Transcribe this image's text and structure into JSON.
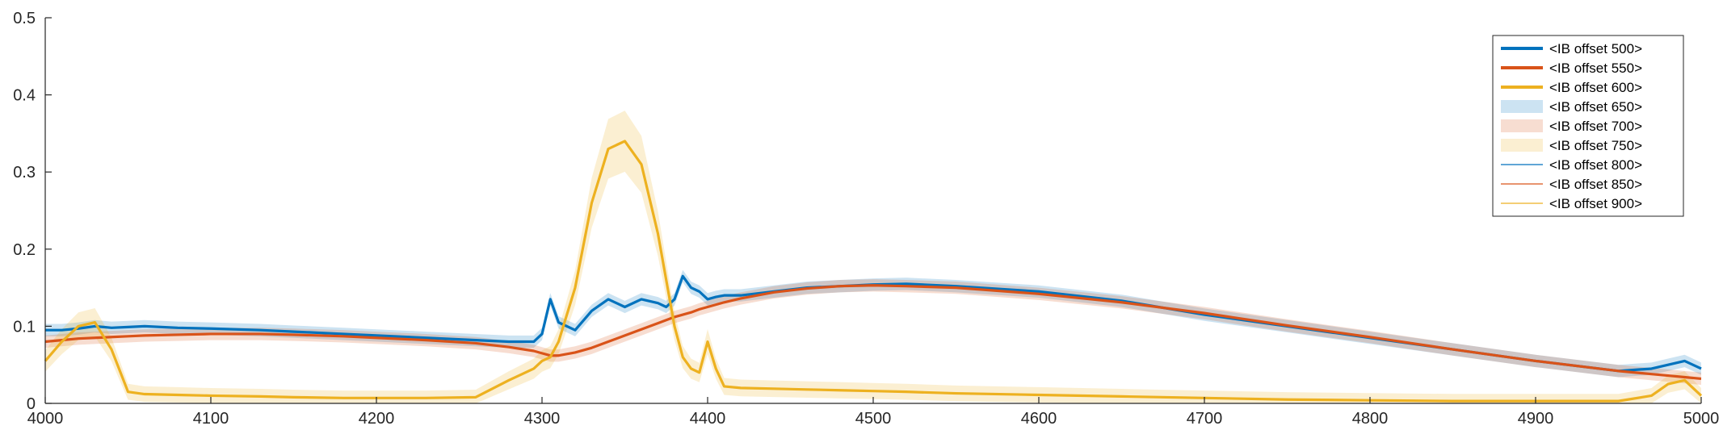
{
  "chart_data": {
    "type": "line",
    "title": "",
    "xlabel": "",
    "ylabel": "",
    "xlim": [
      4000,
      5000
    ],
    "ylim": [
      0,
      0.5
    ],
    "x_ticks": [
      4000,
      4100,
      4200,
      4300,
      4400,
      4500,
      4600,
      4700,
      4800,
      4900,
      5000
    ],
    "x_tick_labels": [
      "4000",
      "4100",
      "4200",
      "4300",
      "4400",
      "4500",
      "4600",
      "4700",
      "4800",
      "4900",
      "5000"
    ],
    "y_ticks": [
      0,
      0.1,
      0.2,
      0.3,
      0.4,
      0.5
    ],
    "y_tick_labels": [
      "0",
      "0.1",
      "0.2",
      "0.3",
      "0.4",
      "0.5"
    ],
    "grid": false,
    "legend_position": "top-right",
    "x": [
      4000,
      4010,
      4020,
      4030,
      4040,
      4050,
      4060,
      4080,
      4100,
      4130,
      4150,
      4180,
      4200,
      4230,
      4260,
      4280,
      4295,
      4300,
      4305,
      4310,
      4320,
      4330,
      4340,
      4350,
      4360,
      4370,
      4375,
      4380,
      4385,
      4390,
      4395,
      4400,
      4405,
      4410,
      4420,
      4440,
      4460,
      4480,
      4500,
      4520,
      4550,
      4600,
      4650,
      4700,
      4750,
      4800,
      4850,
      4900,
      4950,
      4970,
      4980,
      4990,
      5000
    ],
    "series": [
      {
        "name": "<IB offset 500>",
        "color": "#0072BD",
        "values": [
          0.095,
          0.095,
          0.097,
          0.1,
          0.098,
          0.099,
          0.1,
          0.098,
          0.097,
          0.095,
          0.093,
          0.09,
          0.088,
          0.085,
          0.082,
          0.08,
          0.08,
          0.09,
          0.135,
          0.105,
          0.095,
          0.12,
          0.135,
          0.125,
          0.135,
          0.13,
          0.125,
          0.135,
          0.165,
          0.15,
          0.145,
          0.135,
          0.138,
          0.14,
          0.14,
          0.145,
          0.15,
          0.152,
          0.154,
          0.155,
          0.152,
          0.145,
          0.133,
          0.115,
          0.1,
          0.085,
          0.07,
          0.055,
          0.042,
          0.045,
          0.05,
          0.055,
          0.045
        ]
      },
      {
        "name": "<IB offset 550>",
        "color": "#D95319",
        "values": [
          0.08,
          0.082,
          0.084,
          0.085,
          0.086,
          0.087,
          0.088,
          0.089,
          0.09,
          0.09,
          0.089,
          0.087,
          0.085,
          0.082,
          0.078,
          0.073,
          0.068,
          0.065,
          0.062,
          0.062,
          0.066,
          0.072,
          0.08,
          0.088,
          0.096,
          0.104,
          0.108,
          0.112,
          0.115,
          0.118,
          0.122,
          0.125,
          0.128,
          0.131,
          0.136,
          0.144,
          0.149,
          0.152,
          0.153,
          0.152,
          0.15,
          0.142,
          0.131,
          0.117,
          0.101,
          0.086,
          0.07,
          0.055,
          0.042,
          0.038,
          0.036,
          0.034,
          0.032
        ]
      },
      {
        "name": "<IB offset 600>",
        "color": "#EDB120",
        "values": [
          0.055,
          0.08,
          0.1,
          0.105,
          0.07,
          0.015,
          0.012,
          0.011,
          0.01,
          0.009,
          0.008,
          0.007,
          0.007,
          0.007,
          0.008,
          0.03,
          0.045,
          0.055,
          0.06,
          0.08,
          0.15,
          0.26,
          0.33,
          0.34,
          0.31,
          0.22,
          0.16,
          0.1,
          0.06,
          0.045,
          0.04,
          0.08,
          0.045,
          0.022,
          0.02,
          0.019,
          0.018,
          0.017,
          0.016,
          0.015,
          0.013,
          0.011,
          0.009,
          0.007,
          0.005,
          0.004,
          0.003,
          0.003,
          0.003,
          0.01,
          0.025,
          0.03,
          0.01
        ]
      }
    ],
    "band_entries": [
      {
        "name": "<IB offset 650>",
        "color": "#0072BD"
      },
      {
        "name": "<IB offset 700>",
        "color": "#D95319"
      },
      {
        "name": "<IB offset 750>",
        "color": "#EDB120"
      }
    ],
    "thin_line_entries": [
      {
        "name": "<IB offset 800>",
        "color": "#0072BD"
      },
      {
        "name": "<IB offset 850>",
        "color": "#D95319"
      },
      {
        "name": "<IB offset 900>",
        "color": "#EDB120"
      }
    ]
  }
}
